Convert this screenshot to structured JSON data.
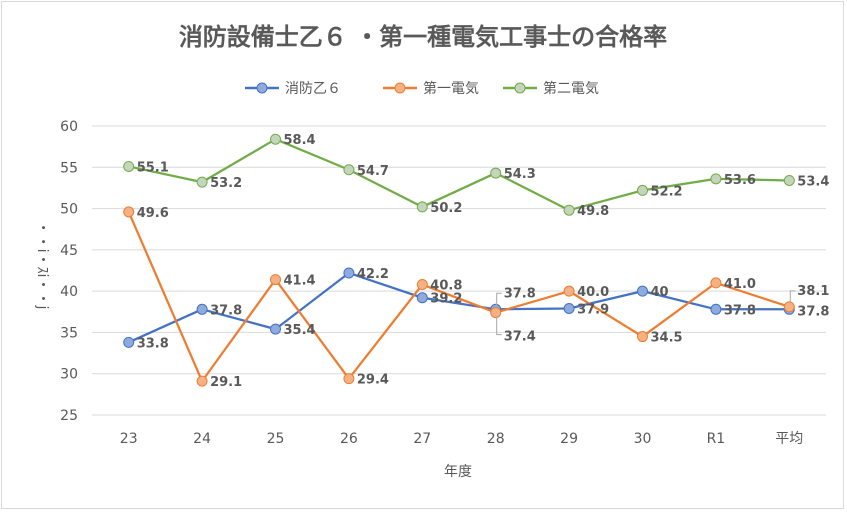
{
  "chart_data": {
    "type": "line",
    "title": "消防設備士乙６ ・第一種電気工事士の合格率",
    "xlabel": "年度",
    "ylabel": "・・i・ｽi・・j",
    "categories": [
      "23",
      "24",
      "25",
      "26",
      "27",
      "28",
      "29",
      "30",
      "R1",
      "平均"
    ],
    "ylim": [
      25,
      60
    ],
    "yticks": [
      "25",
      "30",
      "35",
      "40",
      "45",
      "50",
      "55",
      "60"
    ],
    "grid": true,
    "legend_position": "top",
    "series": [
      {
        "name": "消防乙６",
        "color": "#4472c4",
        "marker_fill": "#8faadc",
        "values": [
          33.8,
          37.8,
          35.4,
          42.2,
          39.2,
          37.8,
          37.9,
          40,
          37.8,
          37.8
        ],
        "labels": [
          "33.8",
          "37.8",
          "35.4",
          "42.2",
          "39.2",
          "37.8",
          "37.9",
          "40",
          "37.8",
          "37.8"
        ]
      },
      {
        "name": "第一電気",
        "color": "#ed7d31",
        "marker_fill": "#f4b183",
        "values": [
          49.6,
          29.1,
          41.4,
          29.4,
          40.8,
          37.4,
          40.0,
          34.5,
          41.0,
          38.1
        ],
        "labels": [
          "49.6",
          "29.1",
          "41.4",
          "29.4",
          "40.8",
          "37.4",
          "40.0",
          "34.5",
          "41.0",
          "38.1"
        ]
      },
      {
        "name": "第二電気",
        "color": "#70ad47",
        "marker_fill": "#c5d4bd",
        "values": [
          55.1,
          53.2,
          58.4,
          54.7,
          50.2,
          54.3,
          49.8,
          52.2,
          53.6,
          53.4
        ],
        "labels": [
          "55.1",
          "53.2",
          "58.4",
          "54.7",
          "50.2",
          "54.3",
          "49.8",
          "52.2",
          "53.6",
          "53.4"
        ]
      }
    ]
  }
}
